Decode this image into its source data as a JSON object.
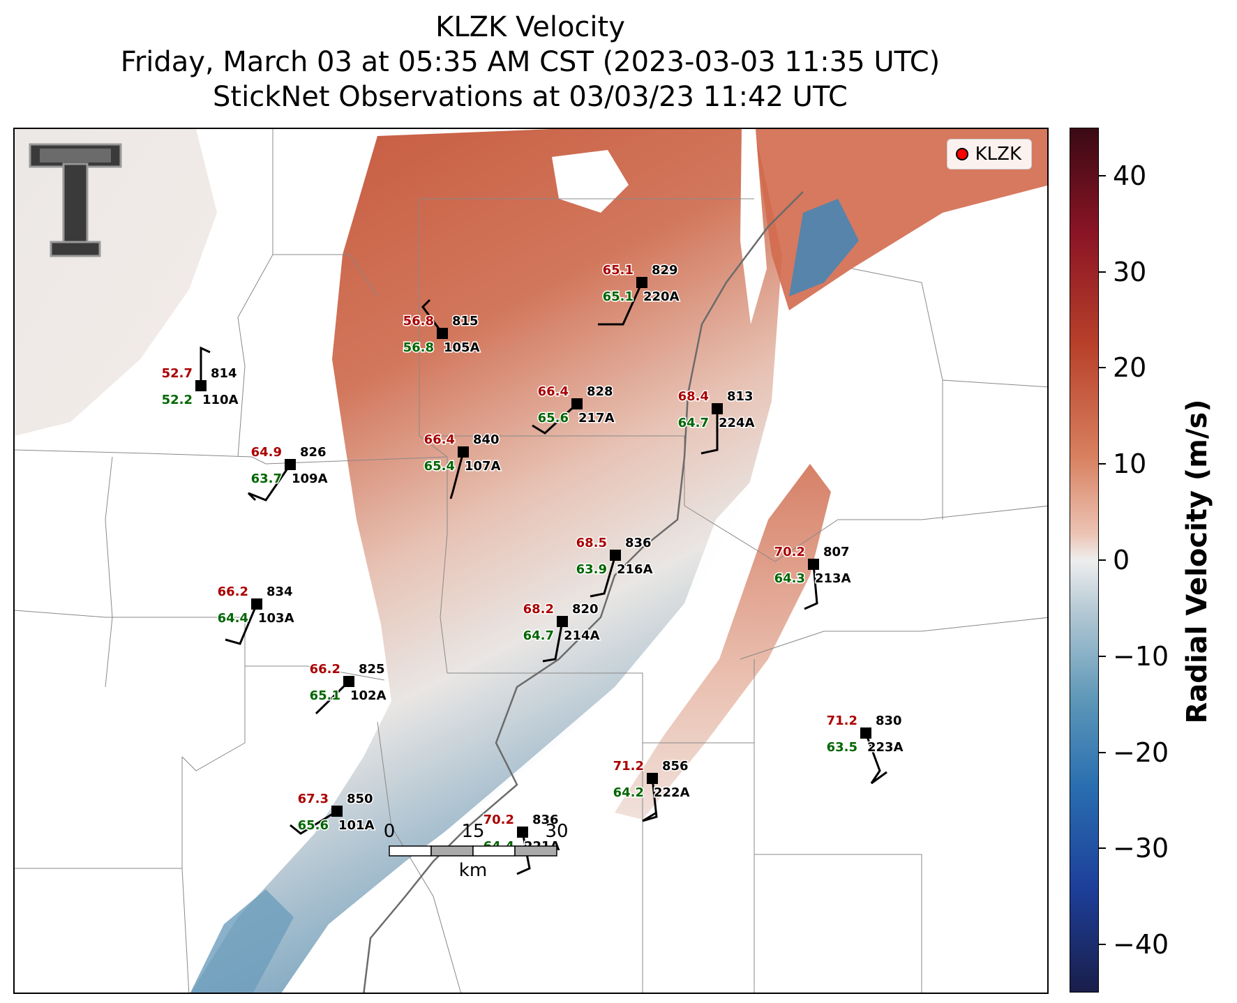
{
  "title": {
    "line1": "KLZK Velocity",
    "line2": "Friday, March 03 at 05:35 AM CST (2023-03-03 11:35 UTC)",
    "line3": "StickNet Observations at 03/03/23 11:42 UTC"
  },
  "legend": {
    "label": "KLZK",
    "marker_color": "#ff0000"
  },
  "colorbar": {
    "label": "Radial Velocity (m/s)",
    "ticks": [
      "40",
      "30",
      "20",
      "10",
      "0",
      "−10",
      "−20",
      "−30",
      "−40"
    ],
    "range": [
      -45,
      45
    ],
    "colors": {
      "max": "#3a0a14",
      "high": "#b8402a",
      "zero": "#eeeeee",
      "low": "#2a6fb0",
      "min": "#1a1e4a"
    }
  },
  "scale_bar": {
    "ticks": [
      "0",
      "15",
      "30"
    ],
    "unit": "km"
  },
  "stations": [
    {
      "id": "829",
      "probe": "220A",
      "temp": "65.1",
      "dew": "65.1"
    },
    {
      "id": "815",
      "probe": "105A",
      "temp": "56.8",
      "dew": "56.8"
    },
    {
      "id": "814",
      "probe": "110A",
      "temp": "52.7",
      "dew": "52.2"
    },
    {
      "id": "828",
      "probe": "217A",
      "temp": "66.4",
      "dew": "65.6"
    },
    {
      "id": "813",
      "probe": "224A",
      "temp": "68.4",
      "dew": "64.7"
    },
    {
      "id": "840",
      "probe": "107A",
      "temp": "66.4",
      "dew": "65.4"
    },
    {
      "id": "826",
      "probe": "109A",
      "temp": "64.9",
      "dew": "63.7"
    },
    {
      "id": "836",
      "probe": "216A",
      "temp": "68.5",
      "dew": "63.9"
    },
    {
      "id": "807",
      "probe": "213A",
      "temp": "70.2",
      "dew": "64.3"
    },
    {
      "id": "834",
      "probe": "103A",
      "temp": "66.2",
      "dew": "64.4"
    },
    {
      "id": "820",
      "probe": "214A",
      "temp": "68.2",
      "dew": "64.7"
    },
    {
      "id": "825",
      "probe": "102A",
      "temp": "66.2",
      "dew": "65.1"
    },
    {
      "id": "830",
      "probe": "223A",
      "temp": "71.2",
      "dew": "63.5"
    },
    {
      "id": "856",
      "probe": "222A",
      "temp": "71.2",
      "dew": "64.2"
    },
    {
      "id": "850",
      "probe": "101A",
      "temp": "67.3",
      "dew": "65.6"
    },
    {
      "id": "836",
      "probe": "221A",
      "temp": "70.2",
      "dew": "64.4"
    }
  ],
  "label_colors": {
    "temp": "#aa0000",
    "dew": "#006600",
    "id": "#000000"
  }
}
